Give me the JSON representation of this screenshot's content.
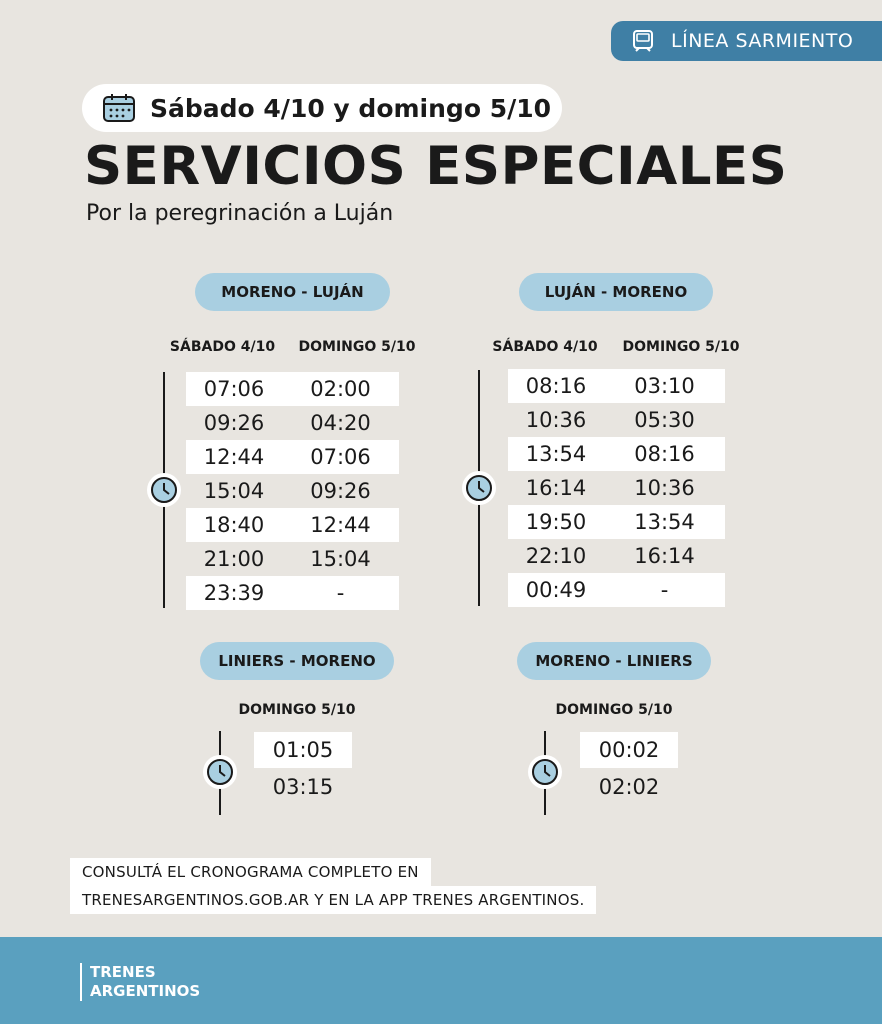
{
  "line_badge": {
    "label": "LÍNEA SARMIENTO",
    "icon": "train-icon"
  },
  "date": {
    "label": "Sábado 4/10 y domingo 5/10",
    "icon": "calendar-icon"
  },
  "title": "SERVICIOS ESPECIALES",
  "subtitle": "Por la peregrinación a Luján",
  "routes": {
    "moreno_lujan": {
      "name": "MORENO - LUJÁN",
      "col1": "SÁBADO 4/10",
      "col2": "DOMINGO 5/10",
      "rows": [
        [
          "07:06",
          "02:00"
        ],
        [
          "09:26",
          "04:20"
        ],
        [
          "12:44",
          "07:06"
        ],
        [
          "15:04",
          "09:26"
        ],
        [
          "18:40",
          "12:44"
        ],
        [
          "21:00",
          "15:04"
        ],
        [
          "23:39",
          "-"
        ]
      ]
    },
    "lujan_moreno": {
      "name": "LUJÁN - MORENO",
      "col1": "SÁBADO 4/10",
      "col2": "DOMINGO 5/10",
      "rows": [
        [
          "08:16",
          "03:10"
        ],
        [
          "10:36",
          "05:30"
        ],
        [
          "13:54",
          "08:16"
        ],
        [
          "16:14",
          "10:36"
        ],
        [
          "19:50",
          "13:54"
        ],
        [
          "22:10",
          "16:14"
        ],
        [
          "00:49",
          "-"
        ]
      ]
    },
    "liniers_moreno": {
      "name": "LINIERS - MORENO",
      "col": "DOMINGO 5/10",
      "rows": [
        "01:05",
        "03:15"
      ]
    },
    "moreno_liniers": {
      "name": "MORENO - LINIERS",
      "col": "DOMINGO 5/10",
      "rows": [
        "00:02",
        "02:02"
      ]
    }
  },
  "consult": {
    "line1": "CONSULTÁ EL CRONOGRAMA COMPLETO EN",
    "line2": "TRENESARGENTINOS.GOB.AR Y EN LA APP TRENES ARGENTINOS."
  },
  "brand": {
    "line1": "TRENES",
    "line2": "ARGENTINOS"
  },
  "colors": {
    "accent": "#3f7fa5",
    "pill": "#a9cfe1",
    "footer": "#5aa0bf",
    "background": "#e8e5e0"
  }
}
